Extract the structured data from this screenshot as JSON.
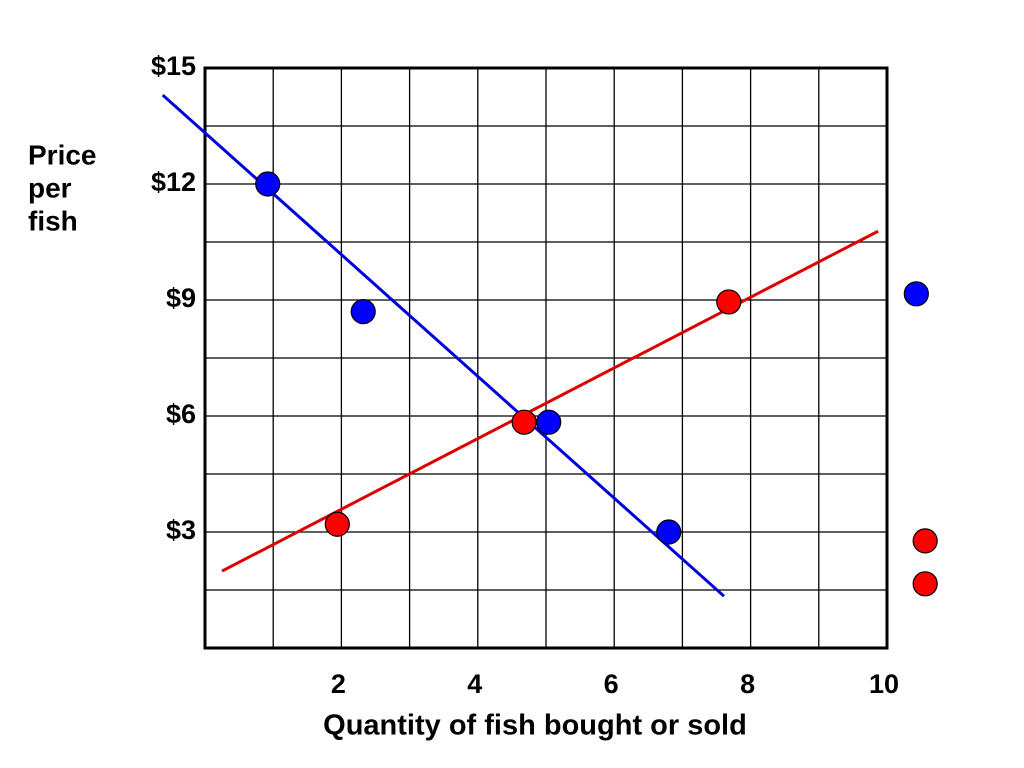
{
  "chart_data": {
    "type": "scatter",
    "x_label": "Quantity of fish bought or sold",
    "y_label": [
      "Price",
      "per",
      "fish"
    ],
    "xlim": [
      0,
      10
    ],
    "ylim": [
      0,
      15
    ],
    "xticks": [
      2,
      4,
      6,
      8,
      10
    ],
    "xminor": [
      1,
      3,
      5,
      7,
      9
    ],
    "yticks": [
      {
        "value": 3,
        "label": "$3"
      },
      {
        "value": 6,
        "label": "$6"
      },
      {
        "value": 9,
        "label": "$9"
      },
      {
        "value": 12,
        "label": "$12"
      },
      {
        "value": 15,
        "label": "$15"
      }
    ],
    "yminor": [
      1.5,
      4.5,
      7.5,
      10.5,
      13.5
    ],
    "grid": true,
    "lines": [
      {
        "color": "#0000dd",
        "x": [
          -0.62,
          7.61
        ],
        "values": [
          14.3,
          1.34
        ]
      },
      {
        "color": "#dd0000",
        "x": [
          0.25,
          9.87
        ],
        "values": [
          1.99,
          10.78
        ]
      }
    ],
    "points": [
      {
        "color": "#0000ff",
        "x": [
          0.92,
          2.32,
          5.04,
          6.8,
          10.43
        ],
        "values": [
          12.0,
          8.7,
          5.84,
          3.0,
          9.16
        ]
      },
      {
        "color": "#ff0000",
        "x": [
          1.94,
          4.68,
          7.68,
          10.56,
          10.56
        ],
        "values": [
          3.2,
          5.84,
          8.95,
          2.77,
          1.66
        ]
      }
    ]
  }
}
